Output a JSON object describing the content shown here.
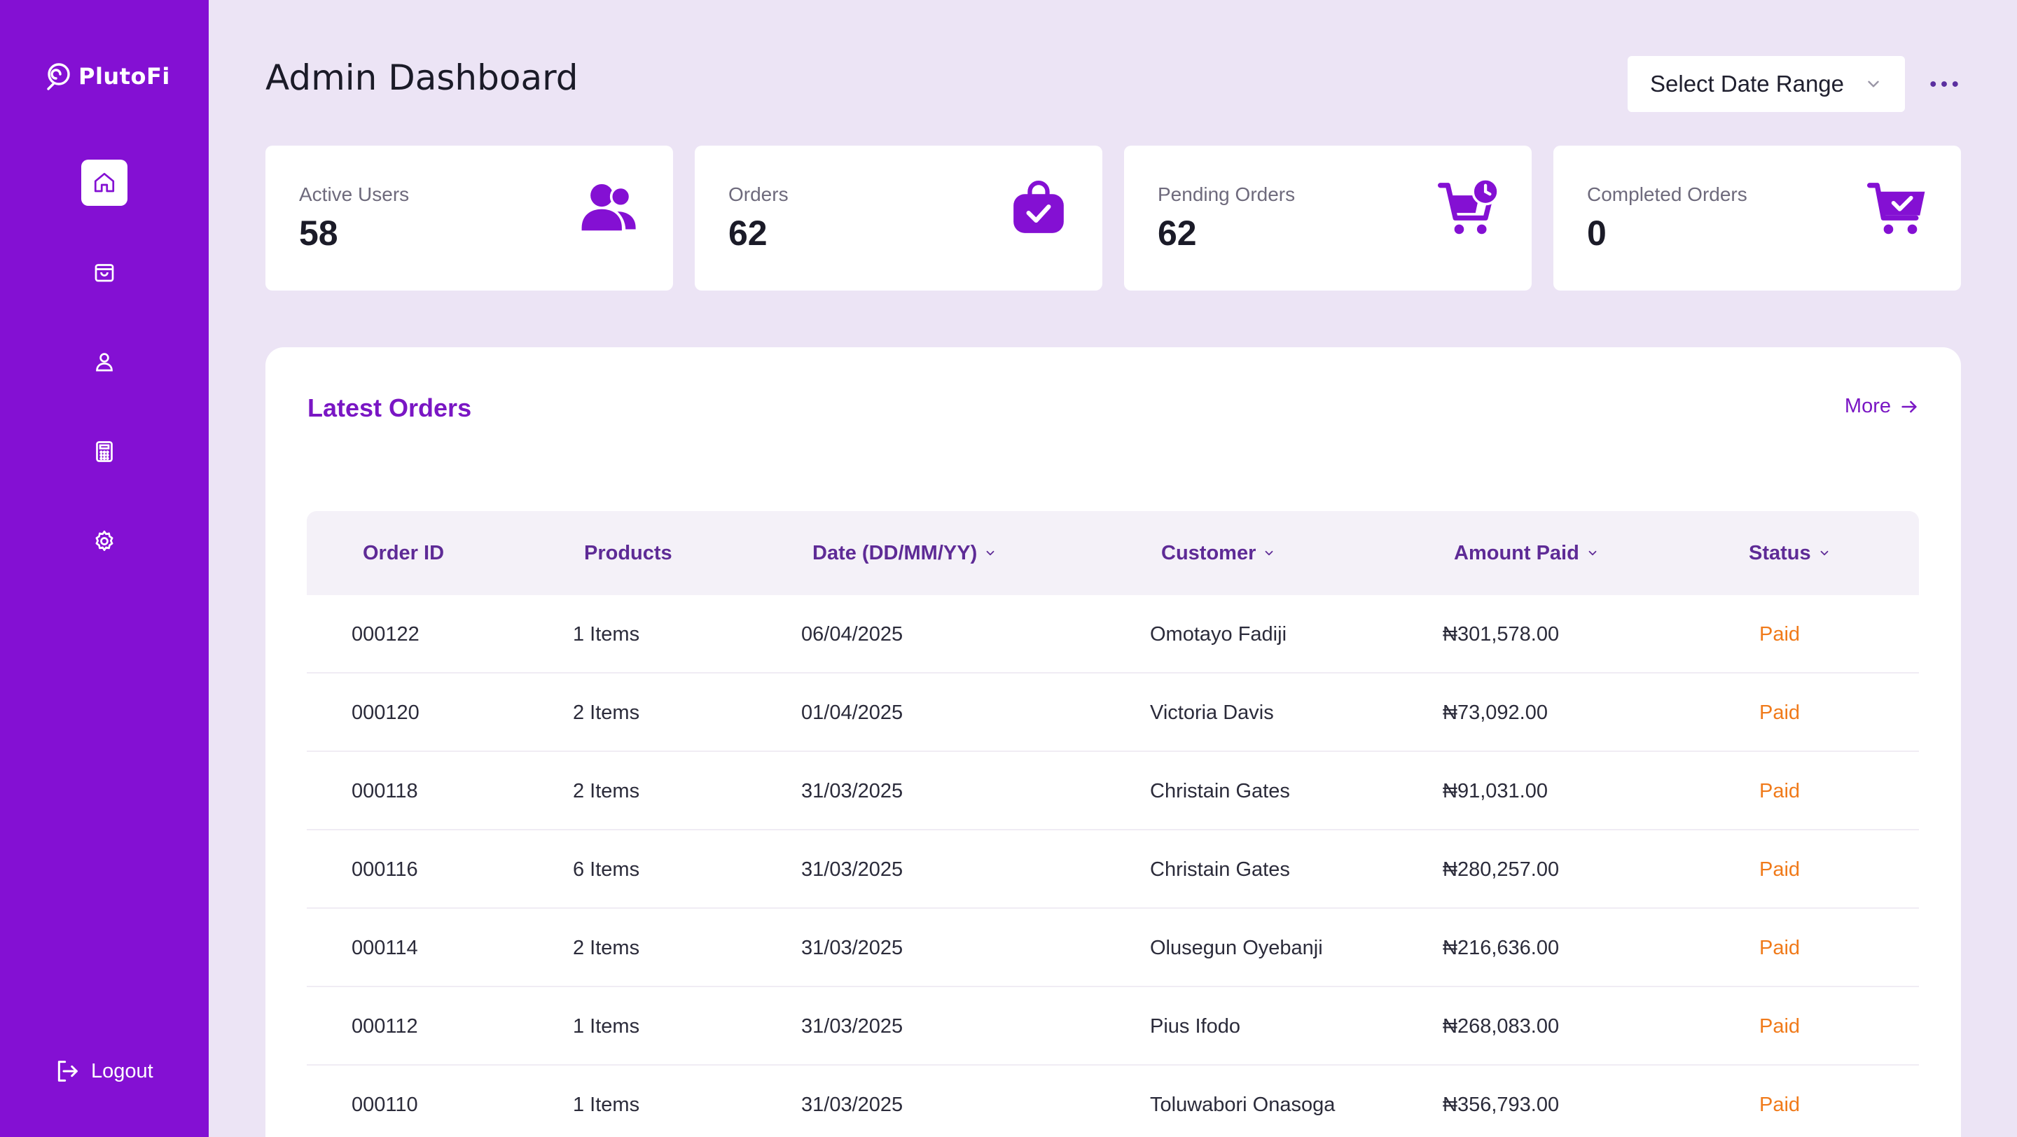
{
  "brand": {
    "name": "PlutoFi"
  },
  "sidebar": {
    "items": [
      {
        "name": "home",
        "icon": "home-icon",
        "active": true
      },
      {
        "name": "orders",
        "icon": "shopping-bag-icon",
        "active": false
      },
      {
        "name": "users",
        "icon": "user-icon",
        "active": false
      },
      {
        "name": "calculator",
        "icon": "calculator-icon",
        "active": false
      },
      {
        "name": "settings",
        "icon": "gear-icon",
        "active": false
      }
    ],
    "logout_label": "Logout"
  },
  "header": {
    "title": "Admin Dashboard",
    "date_range_label": "Select Date Range"
  },
  "stats": [
    {
      "label": "Active Users",
      "value": "58",
      "icon": "users-icon"
    },
    {
      "label": "Orders",
      "value": "62",
      "icon": "bag-check-icon"
    },
    {
      "label": "Pending Orders",
      "value": "62",
      "icon": "cart-clock-icon"
    },
    {
      "label": "Completed Orders",
      "value": "0",
      "icon": "cart-check-icon"
    }
  ],
  "orders": {
    "title": "Latest Orders",
    "more_label": "More",
    "columns": [
      {
        "label": "Order ID",
        "sortable": false
      },
      {
        "label": "Products",
        "sortable": false
      },
      {
        "label": "Date (DD/MM/YY)",
        "sortable": true
      },
      {
        "label": "Customer",
        "sortable": true
      },
      {
        "label": "Amount Paid",
        "sortable": true
      },
      {
        "label": "Status",
        "sortable": true
      }
    ],
    "rows": [
      {
        "id": "000122",
        "products": "1 Items",
        "date": "06/04/2025",
        "customer": "Omotayo Fadiji",
        "amount": "₦301,578.00",
        "status": "Paid"
      },
      {
        "id": "000120",
        "products": "2 Items",
        "date": "01/04/2025",
        "customer": "Victoria Davis",
        "amount": "₦73,092.00",
        "status": "Paid"
      },
      {
        "id": "000118",
        "products": "2 Items",
        "date": "31/03/2025",
        "customer": "Christain Gates",
        "amount": "₦91,031.00",
        "status": "Paid"
      },
      {
        "id": "000116",
        "products": "6 Items",
        "date": "31/03/2025",
        "customer": "Christain Gates",
        "amount": "₦280,257.00",
        "status": "Paid"
      },
      {
        "id": "000114",
        "products": "2 Items",
        "date": "31/03/2025",
        "customer": "Olusegun Oyebanji",
        "amount": "₦216,636.00",
        "status": "Paid"
      },
      {
        "id": "000112",
        "products": "1 Items",
        "date": "31/03/2025",
        "customer": "Pius Ifodo",
        "amount": "₦268,083.00",
        "status": "Paid"
      },
      {
        "id": "000110",
        "products": "1 Items",
        "date": "31/03/2025",
        "customer": "Toluwabori Onasoga",
        "amount": "₦356,793.00",
        "status": "Paid"
      }
    ]
  },
  "colors": {
    "sidebar": "#8410D3",
    "background": "#ECE4F5",
    "accent": "#7A16C4",
    "status_paid": "#F07A1A"
  }
}
